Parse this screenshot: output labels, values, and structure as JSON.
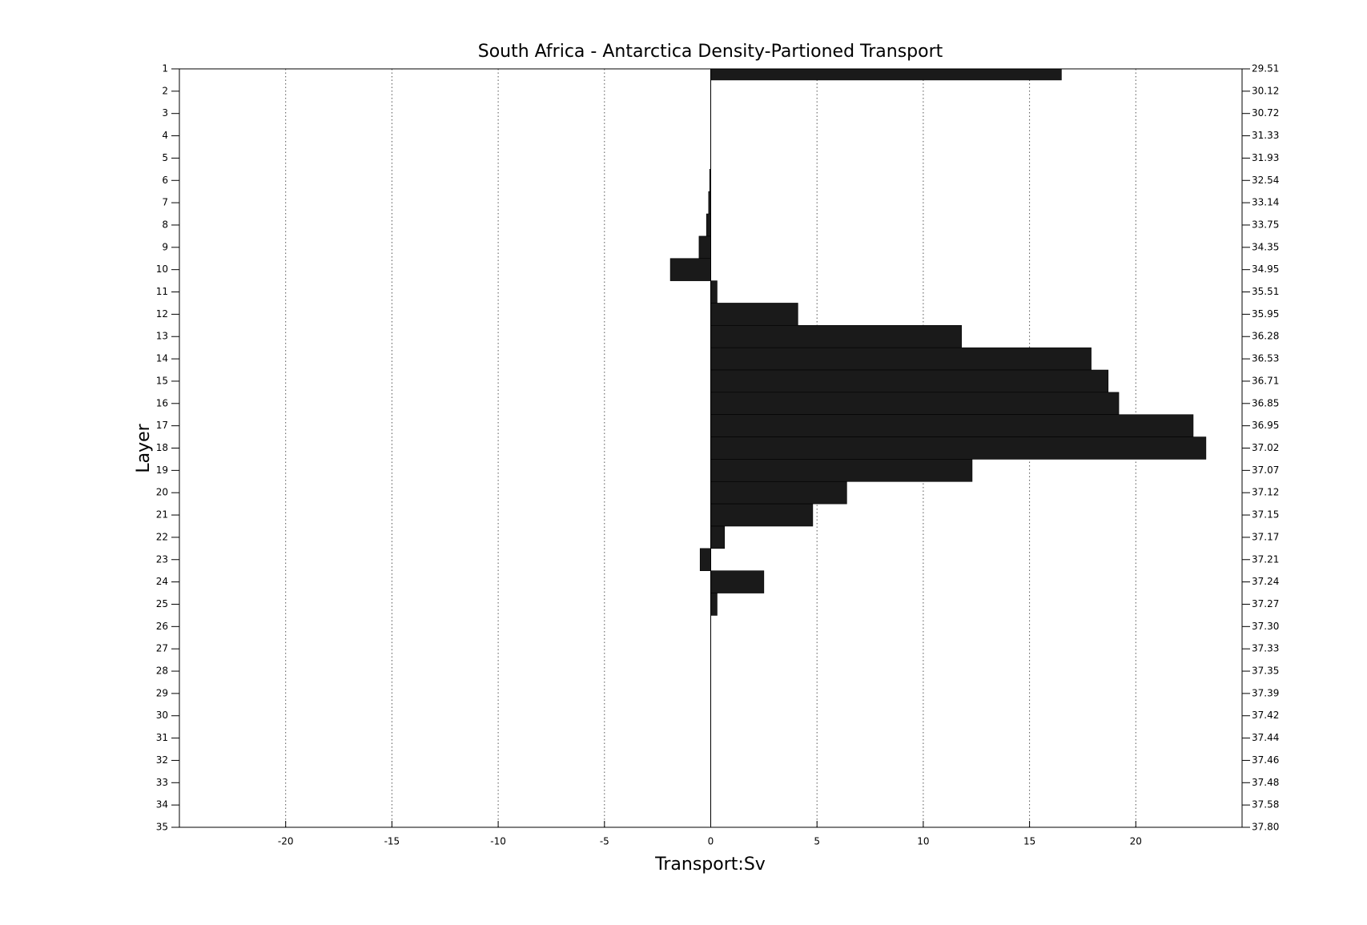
{
  "chart_data": {
    "type": "hbar",
    "title": "South Africa - Antarctica Density-Partioned Transport",
    "xlabel": "Transport:Sv",
    "ylabel": "Layer",
    "categories": [
      1,
      2,
      3,
      4,
      5,
      6,
      7,
      8,
      9,
      10,
      11,
      12,
      13,
      14,
      15,
      16,
      17,
      18,
      19,
      20,
      21,
      22,
      23,
      24,
      25,
      26,
      27,
      28,
      29,
      30,
      31,
      32,
      33,
      34,
      35
    ],
    "values": [
      16.5,
      0,
      0,
      0,
      0,
      -0.05,
      -0.1,
      -0.2,
      -0.55,
      -1.9,
      0.3,
      4.1,
      11.8,
      17.9,
      18.7,
      19.2,
      22.7,
      23.3,
      12.3,
      6.4,
      4.8,
      0.65,
      -0.5,
      2.5,
      0.3,
      0,
      0,
      0,
      0,
      0,
      0,
      0,
      0,
      0,
      0
    ],
    "color": "#1a1a1a",
    "xlim": [
      -25,
      25
    ],
    "xticks": [
      -20,
      -15,
      -10,
      -5,
      0,
      5,
      10,
      15,
      20
    ],
    "ylim": [
      1,
      35
    ],
    "yticks": [
      1,
      2,
      3,
      4,
      5,
      6,
      7,
      8,
      9,
      10,
      11,
      12,
      13,
      14,
      15,
      16,
      17,
      18,
      19,
      20,
      21,
      22,
      23,
      24,
      25,
      26,
      27,
      28,
      29,
      30,
      31,
      32,
      33,
      34,
      35
    ],
    "y2_labels": [
      "29.51",
      "30.12",
      "30.72",
      "31.33",
      "31.93",
      "32.54",
      "33.14",
      "33.75",
      "34.35",
      "34.95",
      "35.51",
      "35.95",
      "36.28",
      "36.53",
      "36.71",
      "36.85",
      "36.95",
      "37.02",
      "37.07",
      "37.12",
      "37.15",
      "37.17",
      "37.21",
      "37.24",
      "37.27",
      "37.30",
      "37.33",
      "37.35",
      "37.39",
      "37.42",
      "37.44",
      "37.46",
      "37.48",
      "37.58",
      "37.80"
    ],
    "grid": true
  }
}
